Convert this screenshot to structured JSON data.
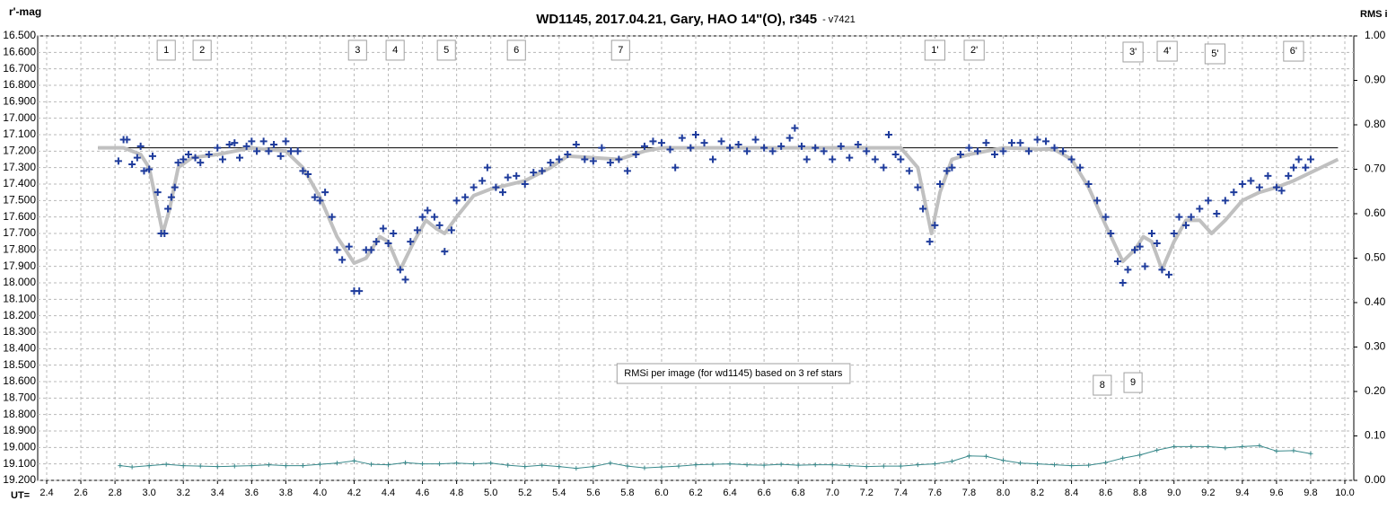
{
  "chart_data": {
    "type": "scatter",
    "title": "WD1145, 2017.04.21,  Gary, HAO 14\"(O), r345",
    "subtitle": "- v7421",
    "y_label": "r'-mag",
    "y2_label": "RMS i",
    "x_label": "UT=",
    "grid": true,
    "xlim": [
      2.4,
      10.0
    ],
    "xticks": [
      2.4,
      2.6,
      2.8,
      {
        "value": 3,
        "label": "3.0"
      },
      3.2,
      3.4,
      3.6,
      3.8,
      {
        "value": 4,
        "label": "4.0"
      },
      4.2,
      4.4,
      4.6,
      4.8,
      {
        "value": 5,
        "label": "5.0"
      },
      5.2,
      5.4,
      5.6,
      5.8,
      {
        "value": 6,
        "label": "6.0"
      },
      6.2,
      6.4,
      6.6,
      6.8,
      {
        "value": 7,
        "label": "7.0"
      },
      7.2,
      7.4,
      7.6,
      7.8,
      {
        "value": 8,
        "label": "8.0"
      },
      8.2,
      8.4,
      8.6,
      8.8,
      {
        "value": 9,
        "label": "9.0"
      },
      9.2,
      9.4,
      9.6,
      9.8,
      {
        "value": 10,
        "label": "10.0"
      }
    ],
    "ylim": [
      19.2,
      16.5
    ],
    "yticks": [
      {
        "value": 16.5,
        "label": "16.500"
      },
      {
        "value": 16.6,
        "label": "16.600"
      },
      {
        "value": 16.7,
        "label": "16.700"
      },
      {
        "value": 16.8,
        "label": "16.800"
      },
      {
        "value": 16.9,
        "label": "16.900"
      },
      {
        "value": 17.0,
        "label": "17.000"
      },
      {
        "value": 17.1,
        "label": "17.100"
      },
      {
        "value": 17.2,
        "label": "17.200"
      },
      {
        "value": 17.3,
        "label": "17.300"
      },
      {
        "value": 17.4,
        "label": "17.400"
      },
      {
        "value": 17.5,
        "label": "17.500"
      },
      {
        "value": 17.6,
        "label": "17.600"
      },
      {
        "value": 17.7,
        "label": "17.700"
      },
      {
        "value": 17.8,
        "label": "17.800"
      },
      {
        "value": 17.9,
        "label": "17.900"
      },
      {
        "value": 18.0,
        "label": "18.000"
      },
      {
        "value": 18.1,
        "label": "18.100"
      },
      {
        "value": 18.2,
        "label": "18.200"
      },
      {
        "value": 18.3,
        "label": "18.300"
      },
      {
        "value": 18.4,
        "label": "18.400"
      },
      {
        "value": 18.5,
        "label": "18.500"
      },
      {
        "value": 18.6,
        "label": "18.600"
      },
      {
        "value": 18.7,
        "label": "18.700"
      },
      {
        "value": 18.8,
        "label": "18.800"
      },
      {
        "value": 18.9,
        "label": "18.900"
      },
      {
        "value": 19.0,
        "label": "19.000"
      },
      {
        "value": 19.1,
        "label": "19.100"
      },
      {
        "value": 19.2,
        "label": "19.200"
      }
    ],
    "y2lim": [
      0,
      1
    ],
    "y2ticks": [
      {
        "value": 0,
        "label": "0.00"
      },
      {
        "value": 0.1,
        "label": "0.10"
      },
      {
        "value": 0.2,
        "label": "0.20"
      },
      {
        "value": 0.3,
        "label": "0.30"
      },
      {
        "value": 0.4,
        "label": "0.40"
      },
      {
        "value": 0.5,
        "label": "0.50"
      },
      {
        "value": 0.6,
        "label": "0.60"
      },
      {
        "value": 0.7,
        "label": "0.70"
      },
      {
        "value": 0.8,
        "label": "0.80"
      },
      {
        "value": 0.9,
        "label": "0.90"
      },
      {
        "value": 1,
        "label": "1.00"
      }
    ],
    "reference_line": {
      "x": [
        2.7,
        9.96
      ],
      "value": 17.18,
      "color": "#000000"
    },
    "series": [
      {
        "type": "scatter",
        "color": "#1f3c9c",
        "x": [
          2.82,
          2.85,
          2.87,
          2.9,
          2.93,
          2.95,
          2.97,
          3.0,
          3.02,
          3.05,
          3.07,
          3.09,
          3.11,
          3.13,
          3.15,
          3.17,
          3.2,
          3.23,
          3.27,
          3.3,
          3.35,
          3.4,
          3.43,
          3.47,
          3.5,
          3.53,
          3.57,
          3.6,
          3.63,
          3.67,
          3.7,
          3.73,
          3.77,
          3.8,
          3.83,
          3.87,
          3.9,
          3.93,
          3.97,
          4.0,
          4.03,
          4.07,
          4.1,
          4.13,
          4.17,
          4.2,
          4.23,
          4.27,
          4.3,
          4.33,
          4.37,
          4.4,
          4.43,
          4.47,
          4.5,
          4.53,
          4.57,
          4.6,
          4.63,
          4.67,
          4.7,
          4.73,
          4.77,
          4.8,
          4.85,
          4.9,
          4.95,
          4.98,
          5.03,
          5.07,
          5.1,
          5.15,
          5.2,
          5.25,
          5.3,
          5.35,
          5.4,
          5.45,
          5.5,
          5.55,
          5.6,
          5.65,
          5.7,
          5.75,
          5.8,
          5.85,
          5.9,
          5.95,
          6.0,
          6.05,
          6.08,
          6.12,
          6.17,
          6.2,
          6.25,
          6.3,
          6.35,
          6.4,
          6.45,
          6.5,
          6.55,
          6.6,
          6.65,
          6.7,
          6.75,
          6.78,
          6.82,
          6.85,
          6.9,
          6.95,
          7.0,
          7.05,
          7.1,
          7.15,
          7.2,
          7.25,
          7.3,
          7.33,
          7.37,
          7.4,
          7.45,
          7.5,
          7.53,
          7.57,
          7.6,
          7.63,
          7.67,
          7.7,
          7.75,
          7.8,
          7.85,
          7.9,
          7.95,
          8.0,
          8.05,
          8.1,
          8.15,
          8.2,
          8.25,
          8.3,
          8.35,
          8.4,
          8.45,
          8.5,
          8.55,
          8.6,
          8.63,
          8.67,
          8.7,
          8.73,
          8.77,
          8.8,
          8.83,
          8.87,
          8.9,
          8.93,
          8.97,
          9.0,
          9.03,
          9.07,
          9.1,
          9.15,
          9.2,
          9.25,
          9.3,
          9.35,
          9.4,
          9.45,
          9.5,
          9.55,
          9.6,
          9.63,
          9.67,
          9.7,
          9.73,
          9.77,
          9.8
        ],
        "values": [
          17.26,
          17.13,
          17.13,
          17.28,
          17.24,
          17.17,
          17.32,
          17.31,
          17.23,
          17.45,
          17.7,
          17.7,
          17.55,
          17.48,
          17.42,
          17.27,
          17.25,
          17.22,
          17.24,
          17.27,
          17.22,
          17.18,
          17.25,
          17.16,
          17.15,
          17.24,
          17.17,
          17.14,
          17.2,
          17.14,
          17.2,
          17.16,
          17.23,
          17.14,
          17.2,
          17.2,
          17.32,
          17.34,
          17.48,
          17.5,
          17.45,
          17.6,
          17.8,
          17.86,
          17.78,
          18.05,
          18.05,
          17.8,
          17.8,
          17.75,
          17.67,
          17.76,
          17.7,
          17.92,
          17.98,
          17.75,
          17.68,
          17.6,
          17.56,
          17.6,
          17.65,
          17.81,
          17.68,
          17.5,
          17.48,
          17.42,
          17.38,
          17.3,
          17.42,
          17.45,
          17.36,
          17.35,
          17.4,
          17.33,
          17.32,
          17.27,
          17.25,
          17.22,
          17.16,
          17.25,
          17.26,
          17.18,
          17.27,
          17.25,
          17.32,
          17.22,
          17.17,
          17.14,
          17.15,
          17.19,
          17.3,
          17.12,
          17.18,
          17.1,
          17.15,
          17.25,
          17.14,
          17.18,
          17.16,
          17.2,
          17.13,
          17.18,
          17.2,
          17.17,
          17.12,
          17.06,
          17.17,
          17.25,
          17.18,
          17.2,
          17.25,
          17.17,
          17.24,
          17.16,
          17.2,
          17.25,
          17.3,
          17.1,
          17.22,
          17.25,
          17.32,
          17.42,
          17.55,
          17.75,
          17.65,
          17.4,
          17.32,
          17.3,
          17.22,
          17.18,
          17.2,
          17.15,
          17.22,
          17.2,
          17.15,
          17.15,
          17.2,
          17.13,
          17.14,
          17.18,
          17.2,
          17.25,
          17.3,
          17.4,
          17.5,
          17.6,
          17.7,
          17.87,
          18.0,
          17.92,
          17.8,
          17.78,
          17.9,
          17.7,
          17.76,
          17.92,
          17.95,
          17.7,
          17.6,
          17.65,
          17.6,
          17.55,
          17.5,
          17.58,
          17.5,
          17.45,
          17.4,
          17.38,
          17.42,
          17.35,
          17.42,
          17.44,
          17.35,
          17.3,
          17.25,
          17.3,
          17.25
        ]
      },
      {
        "type": "line",
        "color": "#c0c0c0",
        "x": [
          2.7,
          2.85,
          2.95,
          3.0,
          3.05,
          3.08,
          3.12,
          3.17,
          3.25,
          3.4,
          3.6,
          3.8,
          3.9,
          4.0,
          4.1,
          4.2,
          4.27,
          4.35,
          4.4,
          4.47,
          4.55,
          4.62,
          4.68,
          4.73,
          4.8,
          4.9,
          5.0,
          5.2,
          5.35,
          5.45,
          5.6,
          5.75,
          5.9,
          6.0,
          7.4,
          7.5,
          7.55,
          7.58,
          7.63,
          7.7,
          7.8,
          8.0,
          8.3,
          8.4,
          8.5,
          8.6,
          8.7,
          8.77,
          8.82,
          8.87,
          8.93,
          9.0,
          9.07,
          9.15,
          9.22,
          9.3,
          9.4,
          9.5,
          9.6,
          9.7,
          9.8,
          9.96
        ],
        "values": [
          17.18,
          17.18,
          17.22,
          17.3,
          17.55,
          17.7,
          17.55,
          17.3,
          17.24,
          17.22,
          17.18,
          17.2,
          17.3,
          17.48,
          17.72,
          17.88,
          17.85,
          17.72,
          17.75,
          17.92,
          17.75,
          17.62,
          17.67,
          17.7,
          17.6,
          17.47,
          17.43,
          17.38,
          17.3,
          17.23,
          17.24,
          17.25,
          17.2,
          17.18,
          17.18,
          17.3,
          17.55,
          17.7,
          17.45,
          17.25,
          17.22,
          17.18,
          17.19,
          17.25,
          17.42,
          17.65,
          17.87,
          17.8,
          17.72,
          17.75,
          17.92,
          17.75,
          17.62,
          17.62,
          17.7,
          17.62,
          17.5,
          17.45,
          17.42,
          17.38,
          17.33,
          17.25
        ]
      },
      {
        "type": "line",
        "marker": "plus",
        "axis": "y2",
        "color": "#3a8a8c",
        "x": [
          2.83,
          2.9,
          3.0,
          3.1,
          3.2,
          3.3,
          3.4,
          3.5,
          3.6,
          3.7,
          3.8,
          3.9,
          4.0,
          4.1,
          4.2,
          4.3,
          4.4,
          4.5,
          4.6,
          4.7,
          4.8,
          4.9,
          5.0,
          5.1,
          5.2,
          5.3,
          5.4,
          5.5,
          5.6,
          5.7,
          5.8,
          5.9,
          6.0,
          6.1,
          6.2,
          6.3,
          6.4,
          6.5,
          6.6,
          6.7,
          6.8,
          6.9,
          7.0,
          7.1,
          7.2,
          7.3,
          7.4,
          7.5,
          7.6,
          7.7,
          7.8,
          7.9,
          8.0,
          8.1,
          8.2,
          8.3,
          8.4,
          8.5,
          8.6,
          8.7,
          8.8,
          8.9,
          9.0,
          9.1,
          9.2,
          9.3,
          9.4,
          9.5,
          9.6,
          9.7,
          9.8
        ],
        "values": [
          0.033,
          0.03,
          0.033,
          0.036,
          0.033,
          0.032,
          0.031,
          0.032,
          0.033,
          0.035,
          0.033,
          0.033,
          0.036,
          0.039,
          0.044,
          0.036,
          0.035,
          0.04,
          0.037,
          0.037,
          0.039,
          0.037,
          0.039,
          0.034,
          0.031,
          0.034,
          0.031,
          0.027,
          0.031,
          0.039,
          0.032,
          0.028,
          0.03,
          0.032,
          0.035,
          0.036,
          0.037,
          0.035,
          0.034,
          0.036,
          0.034,
          0.035,
          0.035,
          0.033,
          0.031,
          0.032,
          0.032,
          0.035,
          0.037,
          0.043,
          0.055,
          0.054,
          0.045,
          0.039,
          0.037,
          0.035,
          0.033,
          0.034,
          0.04,
          0.05,
          0.057,
          0.068,
          0.076,
          0.076,
          0.076,
          0.073,
          0.076,
          0.078,
          0.066,
          0.067,
          0.06
        ]
      }
    ],
    "annotations": [
      {
        "text": "1",
        "x": 3.1,
        "y": 16.587
      },
      {
        "text": "2",
        "x": 3.31,
        "y": 16.587
      },
      {
        "text": "3",
        "x": 4.22,
        "y": 16.587
      },
      {
        "text": "4",
        "x": 4.44,
        "y": 16.587
      },
      {
        "text": "5",
        "x": 4.74,
        "y": 16.587
      },
      {
        "text": "6",
        "x": 5.15,
        "y": 16.587
      },
      {
        "text": "7",
        "x": 5.76,
        "y": 16.587
      },
      {
        "text": "1'",
        "x": 7.6,
        "y": 16.587
      },
      {
        "text": "2'",
        "x": 7.83,
        "y": 16.587
      },
      {
        "text": "3'",
        "x": 8.76,
        "y": 16.598
      },
      {
        "text": "4'",
        "x": 8.96,
        "y": 16.593
      },
      {
        "text": "5'",
        "x": 9.24,
        "y": 16.609
      },
      {
        "text": "6'",
        "x": 9.7,
        "y": 16.593
      },
      {
        "text": "8",
        "x": 8.58,
        "y": 18.622
      },
      {
        "text": "9",
        "x": 8.76,
        "y": 18.606
      },
      {
        "text": "RMSi per image (for wd1145) based on 3 ref stars",
        "x": 6.42,
        "y": 18.551
      }
    ]
  }
}
